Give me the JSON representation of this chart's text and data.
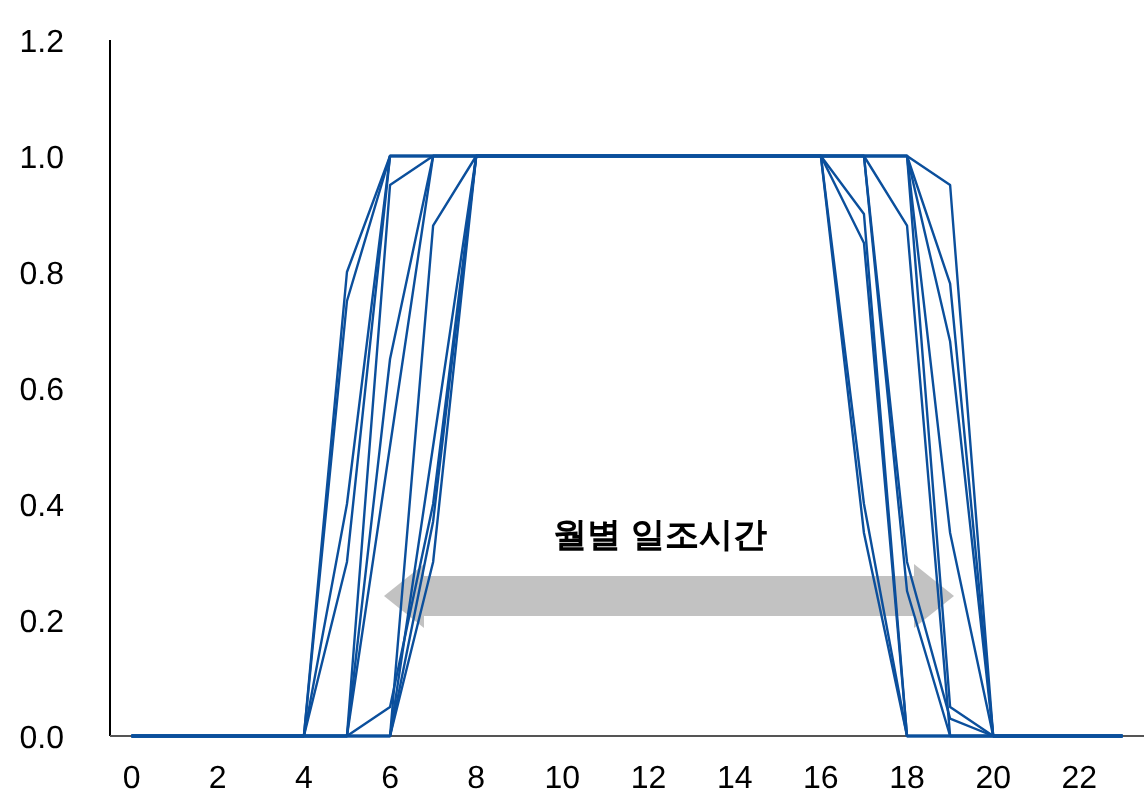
{
  "chart_data": {
    "type": "line",
    "x": [
      0,
      1,
      2,
      3,
      4,
      5,
      6,
      7,
      8,
      9,
      10,
      11,
      12,
      13,
      14,
      15,
      16,
      17,
      18,
      19,
      20,
      21,
      22,
      23
    ],
    "xlim": [
      -0.5,
      23.5
    ],
    "ylim": [
      0,
      1.2
    ],
    "xticks": [
      0,
      2,
      4,
      6,
      8,
      10,
      12,
      14,
      16,
      18,
      20,
      22
    ],
    "yticks": [
      {
        "value": 0,
        "label": "0.0"
      },
      {
        "value": 0.2,
        "label": "0.2"
      },
      {
        "value": 0.4,
        "label": "0.4"
      },
      {
        "value": 0.6,
        "label": "0.6"
      },
      {
        "value": 0.8,
        "label": "0.8"
      },
      {
        "value": 1,
        "label": "1.0"
      },
      {
        "value": 1.2,
        "label": "1.2"
      }
    ],
    "grid": false,
    "marker": "none",
    "line_style": "solid",
    "annotations": [
      "월별 일조시간"
    ],
    "series": [
      {
        "color": "#0b4f9c",
        "values": [
          0,
          0,
          0,
          0,
          0,
          0,
          0,
          0.37,
          1,
          1,
          1,
          1,
          1,
          1,
          1,
          1,
          1,
          0.4,
          0,
          0,
          0,
          0,
          0,
          0
        ]
      },
      {
        "color": "#0b4f9c",
        "values": [
          0,
          0,
          0,
          0,
          0,
          0,
          0,
          0.88,
          1,
          1,
          1,
          1,
          1,
          1,
          1,
          1,
          1,
          0.9,
          0,
          0,
          0,
          0,
          0,
          0
        ]
      },
      {
        "color": "#0b4f9c",
        "values": [
          0,
          0,
          0,
          0,
          0,
          0,
          0.65,
          1,
          1,
          1,
          1,
          1,
          1,
          1,
          1,
          1,
          1,
          1,
          0.88,
          0,
          0,
          0,
          0,
          0
        ]
      },
      {
        "color": "#0b4f9c",
        "values": [
          0,
          0,
          0,
          0,
          0,
          0,
          0.95,
          1,
          1,
          1,
          1,
          1,
          1,
          1,
          1,
          1,
          1,
          1,
          1,
          0.35,
          0,
          0,
          0,
          0
        ]
      },
      {
        "color": "#0b4f9c",
        "values": [
          0,
          0,
          0,
          0,
          0,
          0.75,
          1,
          1,
          1,
          1,
          1,
          1,
          1,
          1,
          1,
          1,
          1,
          1,
          1,
          0.68,
          0,
          0,
          0,
          0
        ]
      },
      {
        "color": "#0b4f9c",
        "values": [
          0,
          0,
          0,
          0,
          0,
          0.8,
          1,
          1,
          1,
          1,
          1,
          1,
          1,
          1,
          1,
          1,
          1,
          1,
          1,
          0.95,
          0,
          0,
          0,
          0
        ]
      },
      {
        "color": "#0b4f9c",
        "values": [
          0,
          0,
          0,
          0,
          0,
          0.4,
          1,
          1,
          1,
          1,
          1,
          1,
          1,
          1,
          1,
          1,
          1,
          1,
          1,
          0.78,
          0,
          0,
          0,
          0
        ]
      },
      {
        "color": "#0b4f9c",
        "values": [
          0,
          0,
          0,
          0,
          0,
          0.3,
          1,
          1,
          1,
          1,
          1,
          1,
          1,
          1,
          1,
          1,
          1,
          1,
          1,
          0.05,
          0,
          0,
          0,
          0
        ]
      },
      {
        "color": "#0b4f9c",
        "values": [
          0,
          0,
          0,
          0,
          0,
          0,
          0.5,
          1,
          1,
          1,
          1,
          1,
          1,
          1,
          1,
          1,
          1,
          1,
          0.3,
          0.03,
          0,
          0,
          0,
          0
        ]
      },
      {
        "color": "#0b4f9c",
        "values": [
          0,
          0,
          0,
          0,
          0,
          0,
          0.05,
          0.4,
          1,
          1,
          1,
          1,
          1,
          1,
          1,
          1,
          1,
          1,
          0.25,
          0,
          0,
          0,
          0,
          0
        ]
      },
      {
        "color": "#0b4f9c",
        "values": [
          0,
          0,
          0,
          0,
          0,
          0,
          0,
          0.5,
          1,
          1,
          1,
          1,
          1,
          1,
          1,
          1,
          1,
          0.85,
          0,
          0,
          0,
          0,
          0,
          0
        ]
      },
      {
        "color": "#0b4f9c",
        "values": [
          0,
          0,
          0,
          0,
          0,
          0,
          0,
          0.3,
          1,
          1,
          1,
          1,
          1,
          1,
          1,
          1,
          1,
          0.35,
          0,
          0,
          0,
          0,
          0,
          0
        ]
      }
    ]
  }
}
